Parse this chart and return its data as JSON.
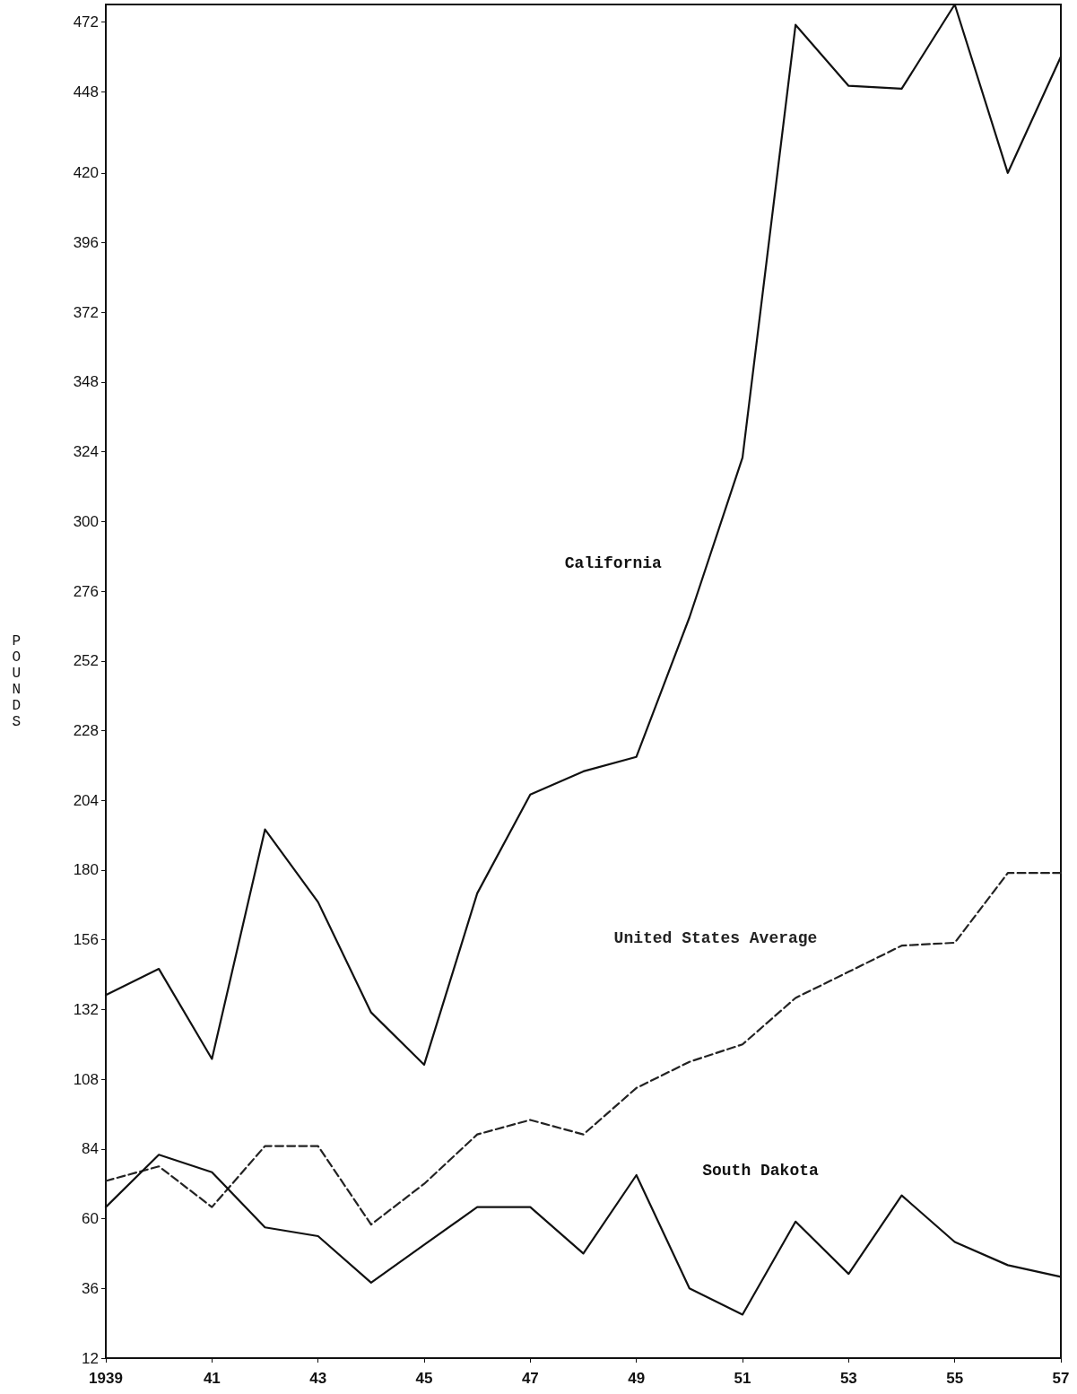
{
  "chart_data": {
    "type": "line",
    "ylabel": "POUNDS",
    "x": [
      1939,
      1940,
      1941,
      1942,
      1943,
      1944,
      1945,
      1946,
      1947,
      1948,
      1949,
      1950,
      1951,
      1952,
      1953,
      1954,
      1955,
      1956,
      1957
    ],
    "series": [
      {
        "name": "California",
        "color": "#111111",
        "line_style": "solid",
        "values": [
          137,
          146,
          115,
          194,
          169,
          131,
          113,
          172,
          206,
          214,
          219,
          267,
          322,
          471,
          450,
          449,
          478,
          420,
          460
        ]
      },
      {
        "name": "United States Average",
        "color": "#222222",
        "line_style": "dashed",
        "values": [
          73,
          78,
          64,
          85,
          85,
          58,
          72,
          89,
          94,
          89,
          105,
          114,
          120,
          136,
          145,
          154,
          155,
          179,
          179
        ]
      },
      {
        "name": "South Dakota",
        "color": "#111111",
        "line_style": "solid",
        "values": [
          64,
          82,
          76,
          57,
          54,
          38,
          51,
          64,
          64,
          48,
          75,
          36,
          27,
          59,
          41,
          68,
          52,
          44,
          40
        ]
      }
    ],
    "xlim": [
      1939,
      1957
    ],
    "xticks": [
      {
        "value": 1939,
        "label": "1939"
      },
      {
        "value": 1941,
        "label": "41"
      },
      {
        "value": 1943,
        "label": "43"
      },
      {
        "value": 1945,
        "label": "45"
      },
      {
        "value": 1947,
        "label": "47"
      },
      {
        "value": 1949,
        "label": "49"
      },
      {
        "value": 1951,
        "label": "51"
      },
      {
        "value": 1953,
        "label": "53"
      },
      {
        "value": 1955,
        "label": "55"
      },
      {
        "value": 1957,
        "label": "57"
      }
    ],
    "ylim": [
      12,
      478
    ],
    "yticks": [
      12,
      36,
      60,
      84,
      108,
      132,
      156,
      180,
      204,
      228,
      252,
      276,
      300,
      324,
      348,
      372,
      396,
      420,
      448,
      472
    ],
    "grid": false,
    "marker": "none"
  }
}
